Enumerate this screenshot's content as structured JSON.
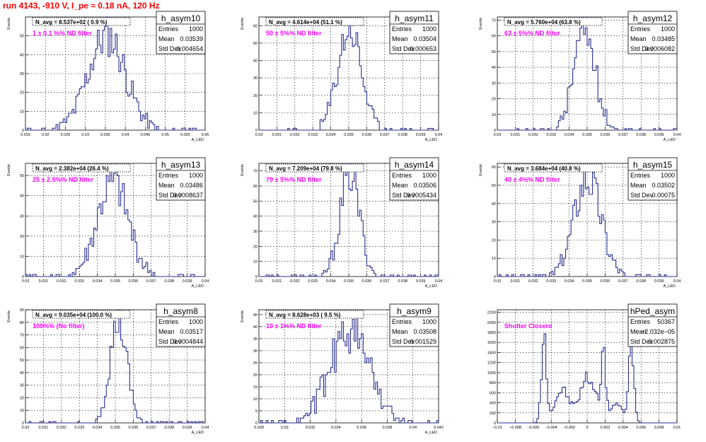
{
  "title": "run 4143,  -910 V, I_pe ≈ 0.18 nA, 120 Hz",
  "chart_data": [
    {
      "type": "histogram",
      "name": "h_asym10",
      "stats": {
        "entries_label": "Entries",
        "entries": "1000",
        "mean_label": "Mean",
        "mean": "0.03539",
        "std_label": "Std Dev",
        "std": "0.004654"
      },
      "navg_label": "N_avg = 8.537e+02 ( 0.9 %)",
      "filter_label": "1 ± 0.1 %% ND filter",
      "xlabel": "A_LED",
      "ylabel": "Events",
      "xlim": [
        0.015,
        0.06
      ],
      "ylim": [
        0,
        60
      ],
      "xticks": [
        "0.015",
        "0.02",
        "0.025",
        "0.03",
        "0.035",
        "0.04",
        "0.045",
        "0.05",
        "0.055",
        "0.06"
      ],
      "yticks": [
        "0",
        "10",
        "20",
        "30",
        "40",
        "50"
      ],
      "mean_val": 0.03539,
      "sigma": 0.004654,
      "peak": 50,
      "nbins": 100,
      "seed": 11
    },
    {
      "type": "histogram",
      "name": "h_asym11",
      "stats": {
        "entries_label": "Entries",
        "entries": "1000",
        "mean_label": "Mean",
        "mean": "0.03504",
        "std_label": "Std Dev",
        "std": "0.000653"
      },
      "navg_label": "N_avg = 4.614e+04 (51.1 %)",
      "filter_label": "50 ± 5%% ND filter",
      "xlabel": "A_LED",
      "ylabel": "Events",
      "xlim": [
        0.03,
        0.04
      ],
      "ylim": [
        0,
        65
      ],
      "xticks": [
        "0.03",
        "0.031",
        "0.032",
        "0.033",
        "0.034",
        "0.035",
        "0.036",
        "0.037",
        "0.038",
        "0.039",
        "0.04"
      ],
      "yticks": [
        "0",
        "10",
        "20",
        "30",
        "40",
        "50",
        "60"
      ],
      "mean_val": 0.03504,
      "sigma": 0.000653,
      "peak": 58,
      "nbins": 100,
      "seed": 23
    },
    {
      "type": "histogram",
      "name": "h_asym12",
      "stats": {
        "entries_label": "Entries",
        "entries": "1000",
        "mean_label": "Mean",
        "mean": "0.03485",
        "std_label": "Std Dev",
        "std": "0.0006082"
      },
      "navg_label": "N_avg = 5.760e+04 (63.8 %)",
      "filter_label": "63 ± 5%% ND filter",
      "xlabel": "A_LED",
      "ylabel": "Events",
      "xlim": [
        0.03,
        0.04
      ],
      "ylim": [
        0,
        72
      ],
      "xticks": [
        "0.03",
        "0.031",
        "0.032",
        "0.033",
        "0.034",
        "0.035",
        "0.036",
        "0.037",
        "0.038",
        "0.039",
        "0.04"
      ],
      "yticks": [
        "0",
        "10",
        "20",
        "30",
        "40",
        "50",
        "60",
        "70"
      ],
      "mean_val": 0.03485,
      "sigma": 0.0006082,
      "peak": 63,
      "nbins": 100,
      "seed": 37
    },
    {
      "type": "histogram",
      "name": "h_asym13",
      "stats": {
        "entries_label": "Entries",
        "entries": "1000",
        "mean_label": "Mean",
        "mean": "0.03486",
        "std_label": "Std Dev",
        "std": "0.0008637"
      },
      "navg_label": "N_avg = 2.382e+04 (26.4 %)",
      "filter_label": "25 ± 2.5%% ND filter",
      "xlabel": "A_LED",
      "ylabel": "Events",
      "xlim": [
        0.03,
        0.04
      ],
      "ylim": [
        0,
        56
      ],
      "xticks": [
        "0.03",
        "0.031",
        "0.032",
        "0.033",
        "0.034",
        "0.035",
        "0.036",
        "0.037",
        "0.038",
        "0.039",
        "0.04"
      ],
      "yticks": [
        "0",
        "10",
        "20",
        "30",
        "40",
        "50"
      ],
      "mean_val": 0.03486,
      "sigma": 0.0008637,
      "peak": 46,
      "nbins": 100,
      "seed": 41
    },
    {
      "type": "histogram",
      "name": "h_asym14",
      "stats": {
        "entries_label": "Entries",
        "entries": "1000",
        "mean_label": "Mean",
        "mean": "0.03506",
        "std_label": "Std Dev",
        "std": "0.0005434"
      },
      "navg_label": "N_avg = 7.209e+04 (79.8 %)",
      "filter_label": "79 ± 5%% ND filter",
      "xlabel": "A_LED",
      "ylabel": "Events",
      "xlim": [
        0.03,
        0.04
      ],
      "ylim": [
        0,
        75
      ],
      "xticks": [
        "0.03",
        "0.031",
        "0.032",
        "0.033",
        "0.034",
        "0.035",
        "0.036",
        "0.037",
        "0.038",
        "0.039",
        "0.04"
      ],
      "yticks": [
        "0",
        "10",
        "20",
        "30",
        "40",
        "50",
        "60",
        "70"
      ],
      "mean_val": 0.03506,
      "sigma": 0.0005434,
      "peak": 68,
      "nbins": 100,
      "seed": 53
    },
    {
      "type": "histogram",
      "name": "h_asym15",
      "stats": {
        "entries_label": "Entries",
        "entries": "1000",
        "mean_label": "Mean",
        "mean": "0.03502",
        "std_label": "Std Dev",
        "std": "0.00075"
      },
      "navg_label": "N_avg = 3.684e+04 (40.8 %)",
      "filter_label": "40 ± 4%% ND filter",
      "xlabel": "A_LED",
      "ylabel": "Events",
      "xlim": [
        0.03,
        0.04
      ],
      "ylim": [
        0,
        62
      ],
      "xticks": [
        "0.03",
        "0.031",
        "0.032",
        "0.033",
        "0.034",
        "0.035",
        "0.036",
        "0.037",
        "0.038",
        "0.039",
        "0.04"
      ],
      "yticks": [
        "0",
        "10",
        "20",
        "30",
        "40",
        "50",
        "60"
      ],
      "mean_val": 0.03502,
      "sigma": 0.00075,
      "peak": 54,
      "nbins": 100,
      "seed": 67
    },
    {
      "type": "histogram",
      "name": "h_asym8",
      "stats": {
        "entries_label": "Entries",
        "entries": "1000",
        "mean_label": "Mean",
        "mean": "0.03517",
        "std_label": "Std Dev",
        "std": "0.0004844"
      },
      "navg_label": "N_avg = 9.035e+04 (100.0 %)",
      "filter_label": "100%% (No filter)",
      "xlabel": "A_LED",
      "ylabel": "Events",
      "xlim": [
        0.03,
        0.04
      ],
      "ylim": [
        0,
        90
      ],
      "xticks": [
        "0.03",
        "0.031",
        "0.032",
        "0.033",
        "0.034",
        "0.035",
        "0.036",
        "0.037",
        "0.038",
        "0.039",
        "0.04"
      ],
      "yticks": [
        "0",
        "10",
        "20",
        "30",
        "40",
        "50",
        "60",
        "70",
        "80",
        "90"
      ],
      "mean_val": 0.03517,
      "sigma": 0.0004844,
      "peak": 80,
      "nbins": 100,
      "seed": 79
    },
    {
      "type": "histogram",
      "name": "h_asym9",
      "stats": {
        "entries_label": "Entries",
        "entries": "1000",
        "mean_label": "Mean",
        "mean": "0.03508",
        "std_label": "Std Dev",
        "std": "0.001529"
      },
      "navg_label": "N_avg = 8.628e+03 ( 9.5 %)",
      "filter_label": "10 ± 1%% ND filter",
      "xlabel": "A_LED",
      "ylabel": "Events",
      "xlim": [
        0.028,
        0.042
      ],
      "ylim": [
        0,
        47
      ],
      "xticks": [
        "0.028",
        "0.03",
        "0.032",
        "0.034",
        "0.036",
        "0.038",
        "0.04",
        "0.042"
      ],
      "yticks": [
        "0",
        "5",
        "10",
        "15",
        "20",
        "25",
        "30",
        "35",
        "40",
        "45"
      ],
      "mean_val": 0.03508,
      "sigma": 0.001529,
      "peak": 38,
      "nbins": 100,
      "seed": 89
    },
    {
      "type": "histogram",
      "name": "hPed_asym",
      "stats": {
        "entries_label": "Entries",
        "entries": "50367",
        "mean_label": "Mean",
        "mean": "−2.032e−05",
        "std_label": "Std Dev",
        "std": "0.002875"
      },
      "navg_label": "",
      "filter_label": "Shutter Closerd",
      "xlabel": "",
      "ylabel": "",
      "xlim": [
        -0.01,
        0.01
      ],
      "ylim": [
        0,
        2250
      ],
      "xticks": [
        "−0.01",
        "−0.008",
        "−0.006",
        "−0.004",
        "−0.002",
        "0",
        "0.002",
        "0.004",
        "0.006",
        "0.008",
        "0.01"
      ],
      "yticks": [
        "0",
        "200",
        "400",
        "600",
        "800",
        "1000",
        "1200",
        "1400",
        "1600",
        "1800",
        "2000",
        "2200"
      ],
      "pedestal": true,
      "nbins": 100,
      "seed": 97
    }
  ]
}
